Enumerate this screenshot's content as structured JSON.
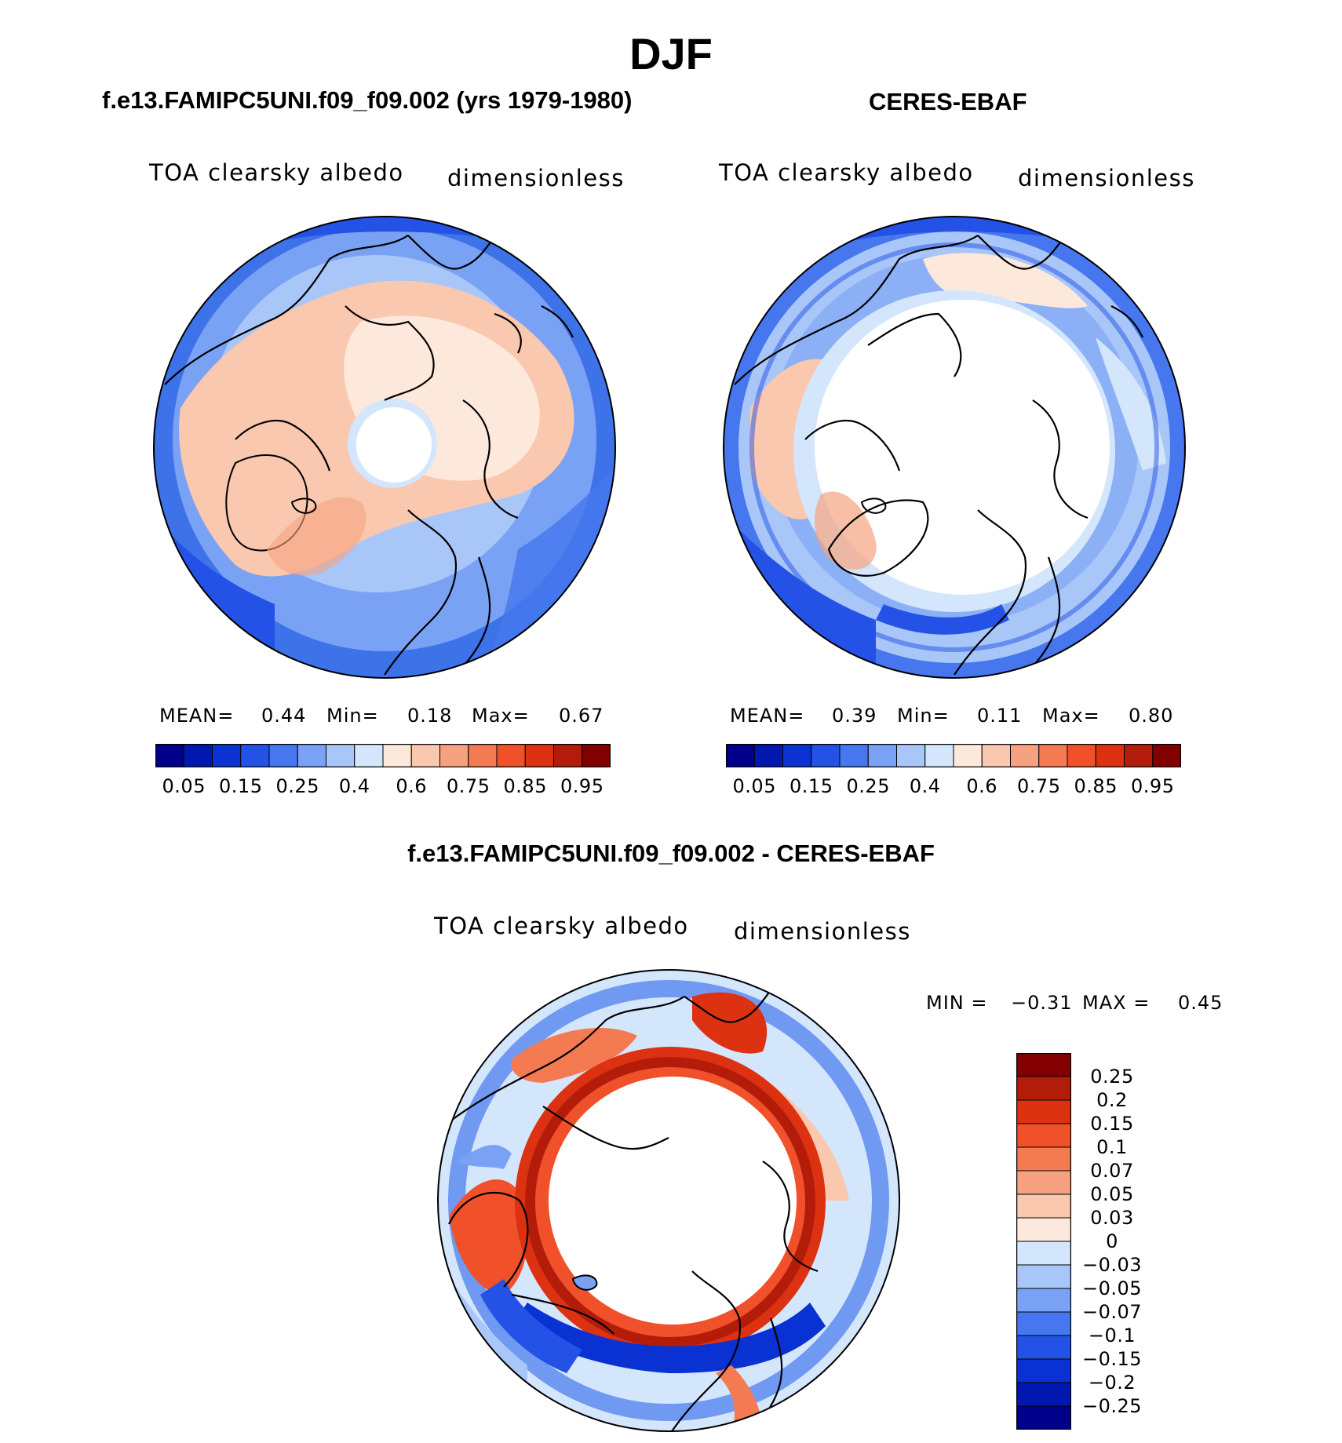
{
  "figure": {
    "title": "DJF"
  },
  "panels": {
    "model": {
      "title": "f.e13.FAMIPC5UNI.f09_f09.002 (yrs 1979-1980)",
      "variable": "TOA clearsky albedo",
      "units": "dimensionless",
      "stats": {
        "mean_label": "MEAN=",
        "mean": "0.44",
        "min_label": "Min=",
        "min": "0.18",
        "max_label": "Max=",
        "max": "0.67"
      }
    },
    "obs": {
      "title": "CERES-EBAF",
      "variable": "TOA clearsky albedo",
      "units": "dimensionless",
      "stats": {
        "mean_label": "MEAN=",
        "mean": "0.39",
        "min_label": "Min=",
        "min": "0.11",
        "max_label": "Max=",
        "max": "0.80"
      }
    },
    "diff": {
      "title": "f.e13.FAMIPC5UNI.f09_f09.002 - CERES-EBAF",
      "variable": "TOA clearsky albedo",
      "units": "dimensionless",
      "stats": {
        "min_label": "MIN =",
        "min": "−0.31",
        "max_label": "MAX =",
        "max": "0.45"
      }
    }
  },
  "colorbars": {
    "absolute": {
      "tick_labels": [
        "0.05",
        "0.15",
        "0.25",
        "0.4",
        "0.6",
        "0.75",
        "0.85",
        "0.95"
      ],
      "colors": [
        "#00008b",
        "#0018b0",
        "#0a32d2",
        "#2452e6",
        "#4677ee",
        "#7aa2f4",
        "#a9c6f8",
        "#d4e6fb",
        "#fde9dc",
        "#f9c8ae",
        "#f6a280",
        "#f47a52",
        "#f0512b",
        "#dc3212",
        "#b41c0a",
        "#820000"
      ]
    },
    "difference": {
      "tick_labels": [
        "0.25",
        "0.2",
        "0.15",
        "0.1",
        "0.07",
        "0.05",
        "0.03",
        "0",
        "−0.03",
        "−0.05",
        "−0.07",
        "−0.1",
        "−0.15",
        "−0.2",
        "−0.25"
      ],
      "colors": [
        "#820000",
        "#b41c0a",
        "#dc3212",
        "#f0512b",
        "#f47a52",
        "#f6a280",
        "#f9c8ae",
        "#fde9dc",
        "#d4e6fb",
        "#a9c6f8",
        "#7aa2f4",
        "#4677ee",
        "#2452e6",
        "#0a32d2",
        "#0018b0",
        "#00008b"
      ]
    }
  }
}
